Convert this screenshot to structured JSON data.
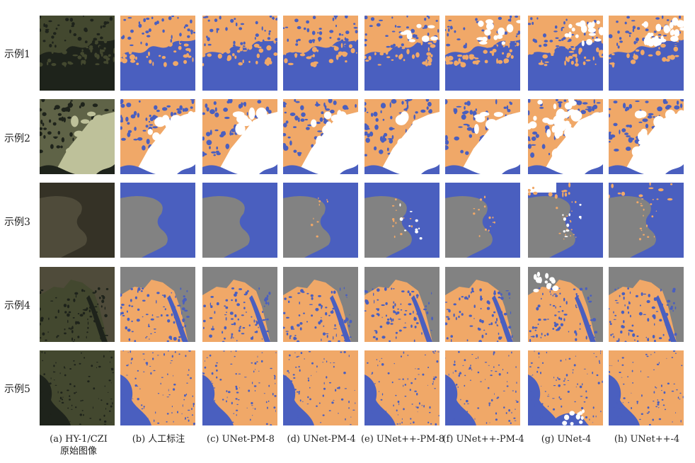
{
  "rows": [
    "示例1",
    "示例2",
    "示例3",
    "示例4",
    "示例5"
  ],
  "columns": [
    {
      "caption": "(a) HY-1/CZI",
      "caption2": "原始图像"
    },
    {
      "caption": "(b) 人工标注"
    },
    {
      "caption": "(c) UNet-PM-8"
    },
    {
      "caption": "(d) UNet-PM-4"
    },
    {
      "caption": "(e) UNet++-PM-8"
    },
    {
      "caption": "(f) UNet++-PM-4"
    },
    {
      "caption": "(g) UNet-4"
    },
    {
      "caption": "(h) UNet++-4"
    }
  ],
  "legend_colors": {
    "water": "#4a5fbf",
    "land": "#f0a868",
    "cloud": "#ffffff",
    "background": "#828282"
  }
}
